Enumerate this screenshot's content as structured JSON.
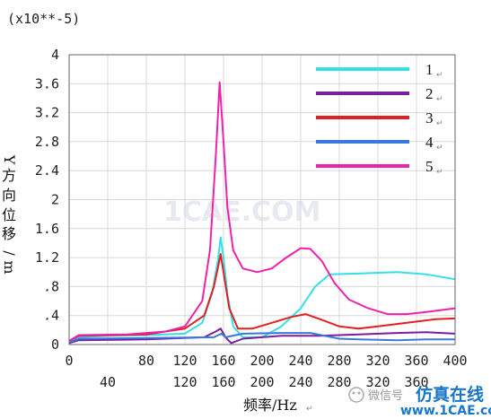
{
  "chart_data": {
    "type": "line",
    "multiplier": "(x10**-5)",
    "ylabel": "Y方向位移/m",
    "xlabel": "频率/Hz",
    "xlim": [
      0,
      400
    ],
    "ylim": [
      0,
      4
    ],
    "x_ticks_top": [
      "0",
      "80",
      "120",
      "160",
      "200",
      "240",
      "280",
      "320",
      "360",
      "400"
    ],
    "x_ticks_bottom": [
      "40",
      "120",
      "160",
      "200",
      "240",
      "280",
      "320",
      "360"
    ],
    "y_ticks": [
      "4",
      "3.6",
      "3.2",
      "2.8",
      "2.4",
      "2",
      "1.6",
      "1.2",
      ".8",
      ".4",
      "0"
    ],
    "grid": true,
    "legend_position": "top-right",
    "series": [
      {
        "name": "1",
        "color": "#33e0e8",
        "points": [
          [
            0,
            0.02
          ],
          [
            10,
            0.1
          ],
          [
            40,
            0.12
          ],
          [
            80,
            0.13
          ],
          [
            120,
            0.15
          ],
          [
            138,
            0.3
          ],
          [
            148,
            0.7
          ],
          [
            154,
            1.15
          ],
          [
            157,
            1.48
          ],
          [
            160,
            1.2
          ],
          [
            164,
            0.7
          ],
          [
            170,
            0.25
          ],
          [
            180,
            0.1
          ],
          [
            200,
            0.1
          ],
          [
            220,
            0.25
          ],
          [
            240,
            0.5
          ],
          [
            255,
            0.8
          ],
          [
            270,
            0.97
          ],
          [
            300,
            0.98
          ],
          [
            340,
            1.0
          ],
          [
            370,
            0.97
          ],
          [
            400,
            0.9
          ]
        ]
      },
      {
        "name": "2",
        "color": "#7a1ea0",
        "points": [
          [
            0,
            0.02
          ],
          [
            10,
            0.06
          ],
          [
            80,
            0.07
          ],
          [
            140,
            0.1
          ],
          [
            152,
            0.18
          ],
          [
            157,
            0.22
          ],
          [
            162,
            0.1
          ],
          [
            168,
            0.02
          ],
          [
            180,
            0.08
          ],
          [
            220,
            0.12
          ],
          [
            260,
            0.12
          ],
          [
            300,
            0.14
          ],
          [
            340,
            0.16
          ],
          [
            370,
            0.17
          ],
          [
            400,
            0.15
          ]
        ]
      },
      {
        "name": "3",
        "color": "#e02020",
        "points": [
          [
            0,
            0.05
          ],
          [
            10,
            0.12
          ],
          [
            80,
            0.14
          ],
          [
            120,
            0.22
          ],
          [
            140,
            0.4
          ],
          [
            150,
            0.8
          ],
          [
            154,
            1.05
          ],
          [
            157,
            1.25
          ],
          [
            160,
            1.0
          ],
          [
            166,
            0.5
          ],
          [
            175,
            0.22
          ],
          [
            190,
            0.22
          ],
          [
            210,
            0.3
          ],
          [
            230,
            0.38
          ],
          [
            245,
            0.42
          ],
          [
            260,
            0.35
          ],
          [
            280,
            0.25
          ],
          [
            300,
            0.22
          ],
          [
            320,
            0.25
          ],
          [
            350,
            0.3
          ],
          [
            380,
            0.35
          ],
          [
            400,
            0.36
          ]
        ]
      },
      {
        "name": "4",
        "color": "#3a78e0",
        "points": [
          [
            0,
            0.03
          ],
          [
            10,
            0.08
          ],
          [
            80,
            0.09
          ],
          [
            150,
            0.1
          ],
          [
            158,
            0.15
          ],
          [
            162,
            0.1
          ],
          [
            180,
            0.15
          ],
          [
            220,
            0.16
          ],
          [
            250,
            0.16
          ],
          [
            280,
            0.08
          ],
          [
            300,
            0.07
          ],
          [
            340,
            0.06
          ],
          [
            370,
            0.07
          ],
          [
            400,
            0.07
          ]
        ]
      },
      {
        "name": "5",
        "color": "#ee22aa",
        "points": [
          [
            0,
            0.05
          ],
          [
            10,
            0.13
          ],
          [
            60,
            0.14
          ],
          [
            100,
            0.18
          ],
          [
            120,
            0.25
          ],
          [
            138,
            0.6
          ],
          [
            146,
            1.3
          ],
          [
            152,
            2.6
          ],
          [
            156,
            3.62
          ],
          [
            160,
            2.8
          ],
          [
            164,
            1.9
          ],
          [
            170,
            1.3
          ],
          [
            180,
            1.05
          ],
          [
            195,
            1.0
          ],
          [
            210,
            1.05
          ],
          [
            225,
            1.2
          ],
          [
            240,
            1.33
          ],
          [
            250,
            1.32
          ],
          [
            262,
            1.15
          ],
          [
            275,
            0.85
          ],
          [
            290,
            0.62
          ],
          [
            310,
            0.5
          ],
          [
            330,
            0.42
          ],
          [
            350,
            0.42
          ],
          [
            370,
            0.45
          ],
          [
            400,
            0.5
          ]
        ]
      }
    ],
    "watermark": "1CAE.COM"
  },
  "footer": {
    "wechat": "微信号",
    "brand": "仿真在线",
    "site": "www.1CAE.com"
  }
}
